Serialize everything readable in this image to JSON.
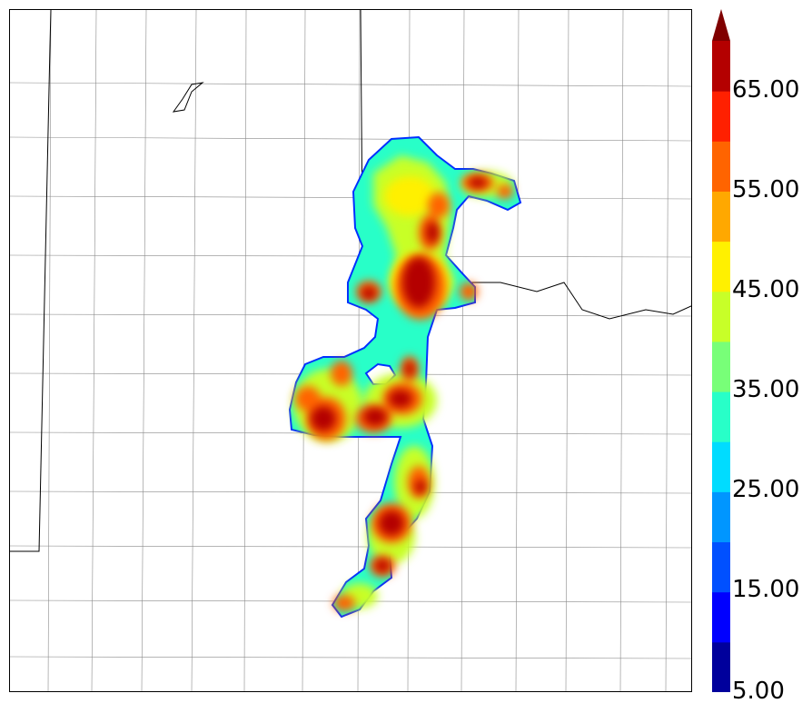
{
  "colorbar": {
    "labels": [
      "65.00",
      "55.00",
      "45.00",
      "35.00",
      "25.00",
      "15.00",
      "5.00"
    ],
    "levels": [
      5,
      10,
      15,
      20,
      25,
      30,
      35,
      40,
      45,
      50,
      55,
      60,
      65,
      70
    ],
    "colors": [
      "#00009c",
      "#0000ff",
      "#0050ff",
      "#0096ff",
      "#00dcff",
      "#28ffc8",
      "#78ff78",
      "#c8ff28",
      "#fff000",
      "#ffa800",
      "#ff6400",
      "#ff2000",
      "#b40000"
    ],
    "extend_color": "#800000"
  }
}
